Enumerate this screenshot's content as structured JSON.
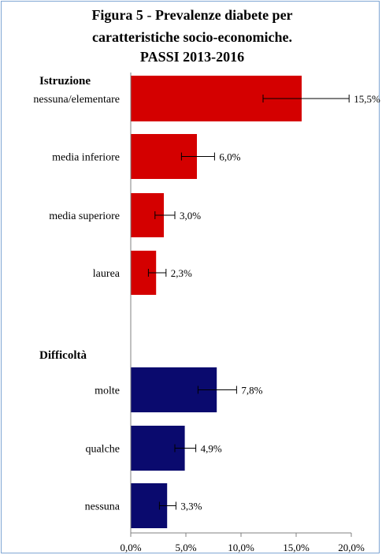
{
  "title": {
    "prefix": "Figura 5",
    "separator": " - ",
    "line1_rest": "Prevalenze diabete per",
    "line2": "caratteristiche socio-economiche.",
    "line3": "PASSI 2013-2016"
  },
  "chart_data": {
    "type": "bar",
    "orientation": "horizontal",
    "xlim": [
      0,
      20
    ],
    "x_ticks": [
      "0,0%",
      "5,0%",
      "10,0%",
      "15,0%",
      "20,0%"
    ],
    "grid": false,
    "groups": [
      {
        "label": "Istruzione",
        "color": "#d40000",
        "categories": [
          "nessuna/elementare",
          "media inferiore",
          "media superiore",
          "laurea"
        ],
        "values": [
          15.5,
          6.0,
          3.0,
          2.3
        ],
        "value_labels": [
          "15,5%",
          "6,0%",
          "3,0%",
          "2,3%"
        ],
        "ci_low": [
          12.0,
          4.6,
          2.2,
          1.6
        ],
        "ci_high": [
          19.8,
          7.6,
          4.0,
          3.2
        ]
      },
      {
        "label": "Difficoltà",
        "color": "#0a0a6e",
        "categories": [
          "molte",
          "qualche",
          "nessuna"
        ],
        "values": [
          7.8,
          4.9,
          3.3
        ],
        "value_labels": [
          "7,8%",
          "4,9%",
          "3,3%"
        ],
        "ci_low": [
          6.1,
          4.0,
          2.6
        ],
        "ci_high": [
          9.6,
          5.9,
          4.1
        ]
      }
    ]
  }
}
